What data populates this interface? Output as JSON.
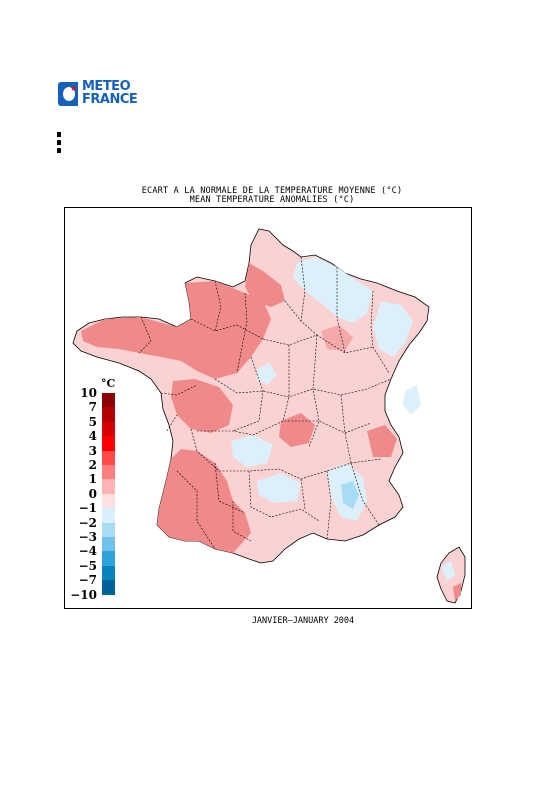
{
  "logo": {
    "line1": "METEO",
    "line2": "FRANCE"
  },
  "title": {
    "line1": "ECART A LA NORMALE DE LA TEMPERATURE MOYENNE (°C)",
    "line2": "MEAN TEMPERATURE ANOMALIES (°C)"
  },
  "legend": {
    "unit": "°C",
    "labels": [
      "10",
      "7",
      "5",
      "4",
      "3",
      "2",
      "1",
      "0",
      "-1",
      "-2",
      "-3",
      "-4",
      "-5",
      "-7",
      "-10"
    ],
    "colors": [
      "#8b0000",
      "#b30000",
      "#d80000",
      "#ff0000",
      "#ff4a4a",
      "#ff7f7f",
      "#ffb3b3",
      "#ffe0e0",
      "#d7efff",
      "#a8dcf5",
      "#70c2ea",
      "#2fa3d9",
      "#0883be",
      "#00629a",
      "#003e63"
    ]
  },
  "colors": {
    "positive_strong": "#f08a8a",
    "positive_light": "#fbd2d2",
    "negative_light": "#dcf0fb",
    "border": "#000000"
  },
  "footer": {
    "period": "JANVIER–JANUARY 2004"
  }
}
